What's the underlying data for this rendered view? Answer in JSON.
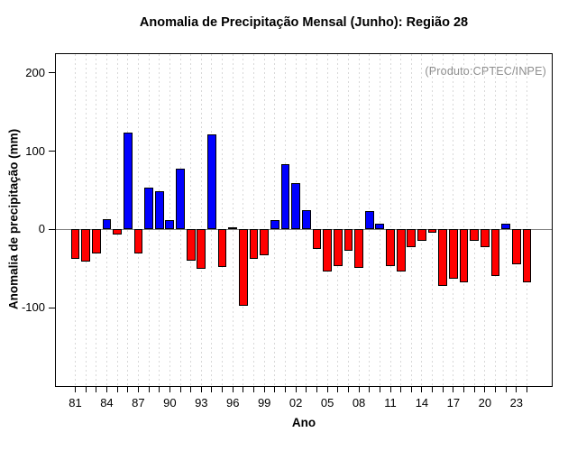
{
  "chart_data": {
    "type": "bar",
    "title": "Anomalia de Precipitação Mensal (Junho): Região 28",
    "xlabel": "Ano",
    "ylabel": "Anomalia de precipitação (mm)",
    "annotation": "(Produto:CPTEC/INPE)",
    "years": [
      1981,
      1982,
      1983,
      1984,
      1985,
      1986,
      1987,
      1988,
      1989,
      1990,
      1991,
      1992,
      1993,
      1994,
      1995,
      1996,
      1997,
      1998,
      1999,
      2000,
      2001,
      2002,
      2003,
      2004,
      2005,
      2006,
      2007,
      2008,
      2009,
      2010,
      2011,
      2012,
      2013,
      2014,
      2015,
      2016,
      2017,
      2018,
      2019,
      2020,
      2021,
      2022,
      2023,
      2024
    ],
    "values": [
      -37,
      -41,
      -31,
      13,
      -6,
      124,
      -31,
      54,
      49,
      12,
      78,
      -40,
      -50,
      122,
      -48,
      3,
      -97,
      -37,
      -33,
      12,
      84,
      59,
      25,
      -25,
      -54,
      -47,
      -27,
      -49,
      24,
      7,
      -47,
      -54,
      -22,
      -15,
      -4,
      -72,
      -63,
      -68,
      -14,
      -23,
      -59,
      7,
      -44,
      -68
    ],
    "x_tick_labels": [
      "81",
      "84",
      "87",
      "90",
      "93",
      "96",
      "99",
      "02",
      "05",
      "08",
      "11",
      "14",
      "17",
      "20",
      "23"
    ],
    "x_tick_label_interval": 3,
    "y_ticks": [
      200,
      100,
      0,
      -100
    ],
    "ylim": [
      -200,
      224
    ],
    "grid": "vertical-dashed",
    "legend": "none",
    "colors": {
      "positive": "#0000ff",
      "negative": "#ff0000",
      "bar_border": "#000000",
      "grid": "#d8d8d8",
      "zero_line": "#7f7f7f",
      "annotation": "#8f8f8f",
      "axis": "#000000"
    }
  }
}
